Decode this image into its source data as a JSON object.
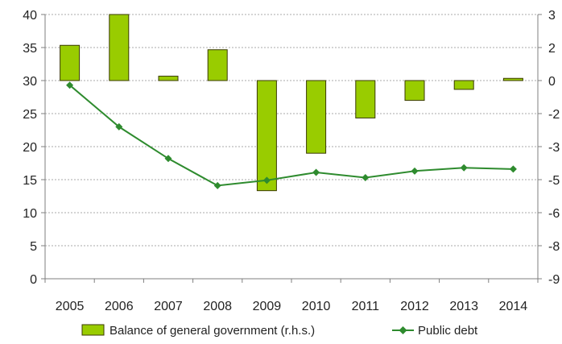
{
  "chart_data": {
    "type": "bar+line",
    "categories": [
      "2005",
      "2006",
      "2007",
      "2008",
      "2009",
      "2010",
      "2011",
      "2012",
      "2013",
      "2014"
    ],
    "series": [
      {
        "name": "Balance of general government (r.h.s.)",
        "type": "bar",
        "axis": "right",
        "color": "#99cc00",
        "values": [
          1.6,
          3.0,
          0.2,
          1.4,
          -5.0,
          -3.3,
          -1.7,
          -0.9,
          -0.4,
          0.1
        ]
      },
      {
        "name": "Public debt",
        "type": "line",
        "axis": "left",
        "color": "#2e8b2e",
        "values": [
          29.3,
          23.0,
          18.2,
          14.1,
          14.9,
          16.1,
          15.3,
          16.3,
          16.8,
          16.6
        ]
      }
    ],
    "left_axis": {
      "min": 0,
      "max": 40,
      "ticks": [
        "0",
        "5",
        "10",
        "15",
        "20",
        "25",
        "30",
        "35",
        "40"
      ]
    },
    "right_axis": {
      "min": -9,
      "max": 3,
      "ticks": [
        "-9",
        "-8",
        "-6",
        "-5",
        "-3",
        "-2",
        "0",
        "2",
        "3"
      ]
    },
    "grid": true,
    "legend_position": "bottom"
  }
}
